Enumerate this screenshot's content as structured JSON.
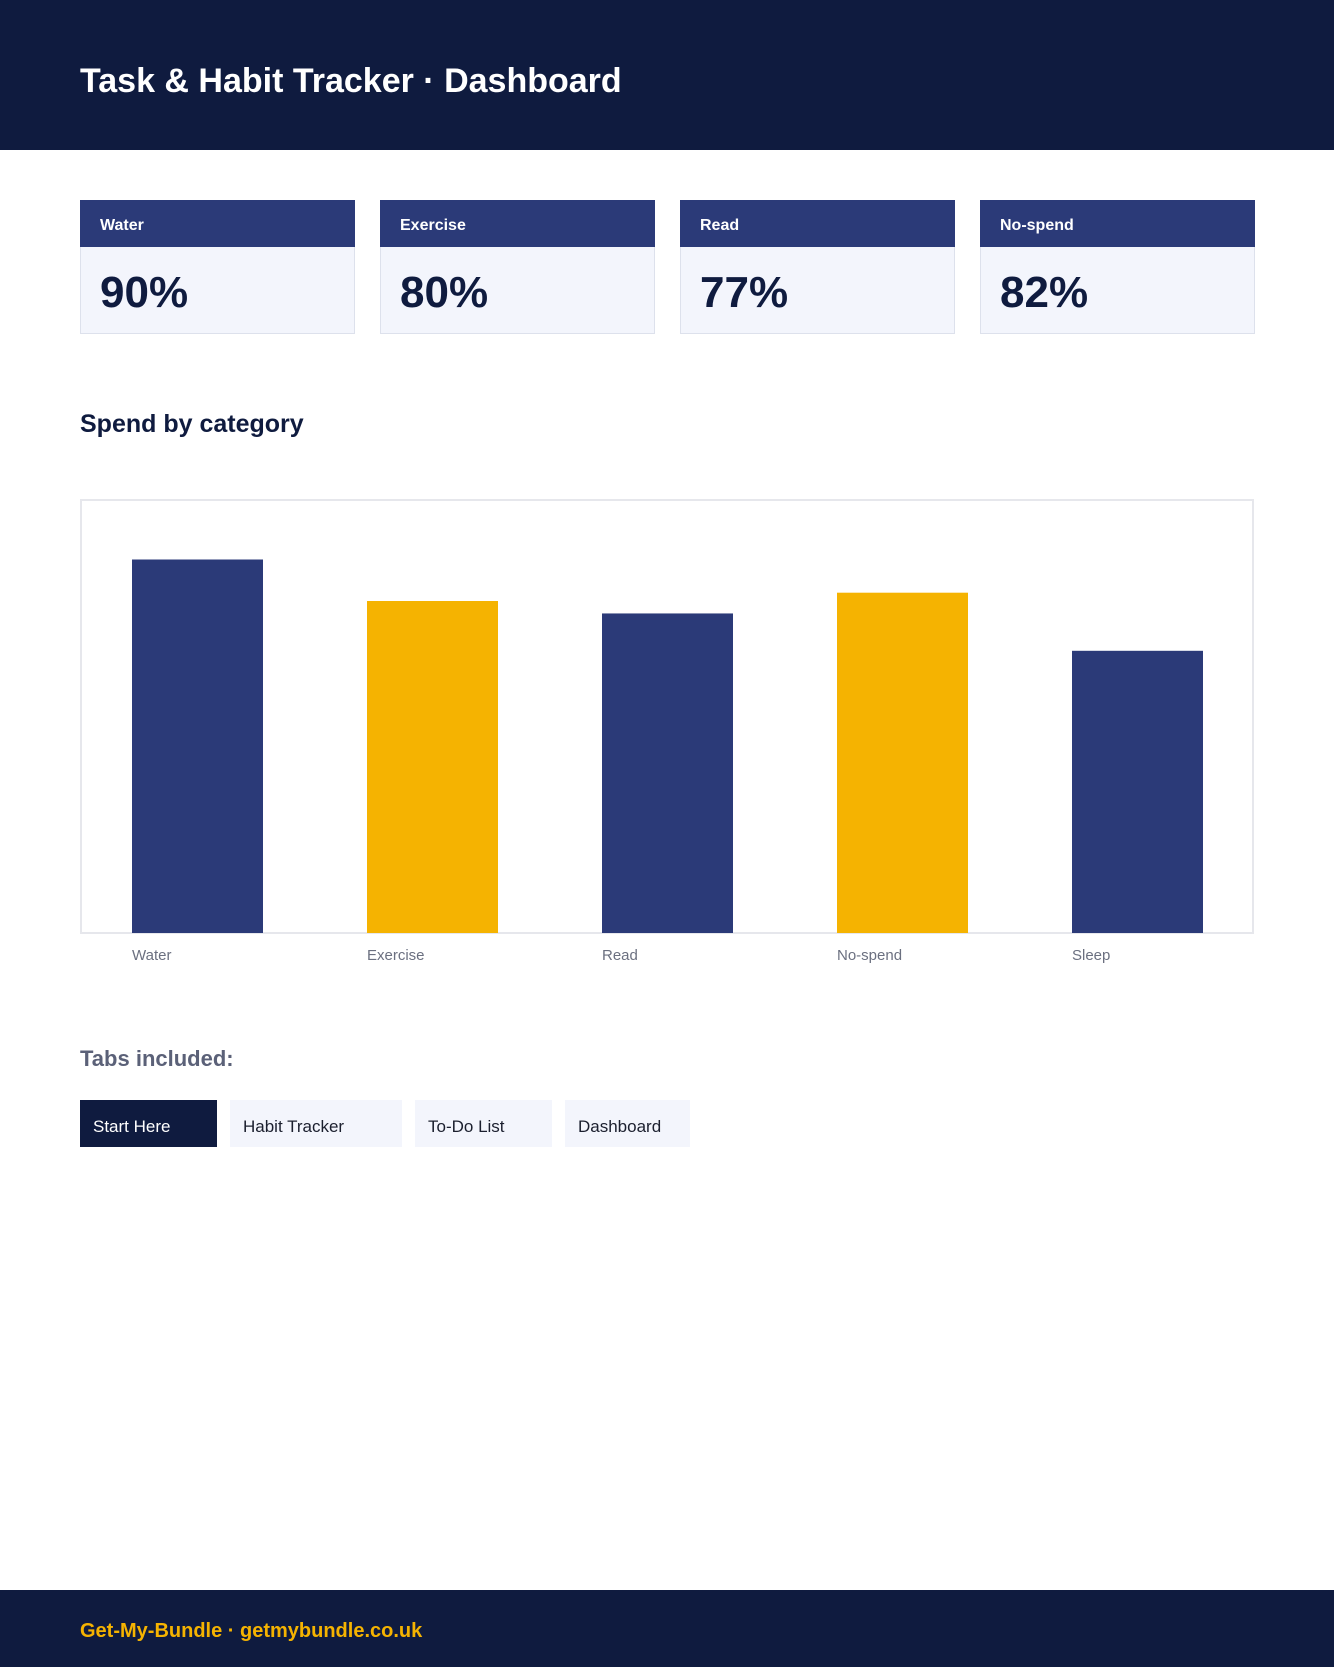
{
  "header": {
    "title": "Task & Habit Tracker · Dashboard"
  },
  "cards": [
    {
      "label": "Water",
      "value": "90%"
    },
    {
      "label": "Exercise",
      "value": "80%"
    },
    {
      "label": "Read",
      "value": "77%"
    },
    {
      "label": "No-spend",
      "value": "82%"
    }
  ],
  "section": {
    "title": "Spend by category"
  },
  "chart_data": {
    "type": "bar",
    "categories": [
      "Water",
      "Exercise",
      "Read",
      "No-spend",
      "Sleep"
    ],
    "values": [
      90,
      80,
      77,
      82,
      68
    ],
    "ylim": [
      0,
      100
    ],
    "colors": [
      "#2b3a78",
      "#f5b301",
      "#2b3a78",
      "#f5b301",
      "#2b3a78"
    ],
    "grid": false,
    "title": "",
    "xlabel": "",
    "ylabel": ""
  },
  "tabs": {
    "title": "Tabs included:",
    "items": [
      {
        "label": "Start Here",
        "active": true
      },
      {
        "label": "Habit Tracker",
        "active": false
      },
      {
        "label": "To-Do List",
        "active": false
      },
      {
        "label": "Dashboard",
        "active": false
      }
    ]
  },
  "footer": {
    "text": "Get-My-Bundle · getmybundle.co.uk"
  },
  "colors": {
    "navy": "#0f1b3f",
    "bar_navy": "#2b3a78",
    "accent": "#f5b301",
    "card_bg": "#f3f5fc"
  }
}
